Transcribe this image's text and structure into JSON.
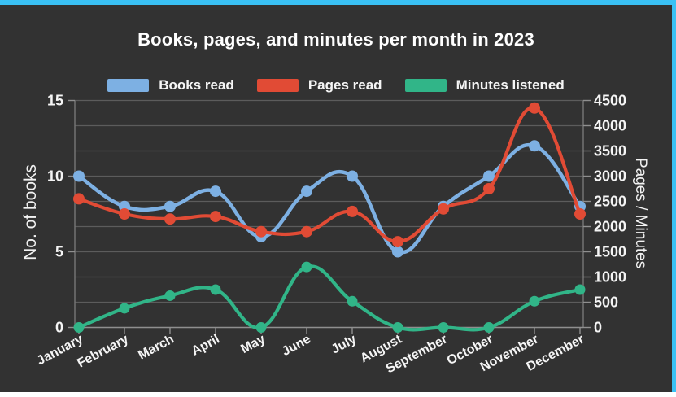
{
  "title": "Books, pages, and minutes per month in 2023",
  "colors": {
    "background": "#323232",
    "frame_border": "#3ac1f4",
    "grid": "#5c5c5c",
    "axis": "#8f8f8f",
    "text": "#f5f5f5"
  },
  "chart_data": {
    "type": "line",
    "smooth": true,
    "grid": "horizontal",
    "legend_position": "top",
    "title": "Books, pages, and minutes per month in 2023",
    "categories": [
      "January",
      "February",
      "March",
      "April",
      "May",
      "June",
      "July",
      "August",
      "September",
      "October",
      "November",
      "December"
    ],
    "left_axis": {
      "label": "No. of books",
      "min": 0,
      "max": 15,
      "ticks": [
        0,
        5,
        10,
        15
      ]
    },
    "right_axis": {
      "label": "Pages / Minutes",
      "min": 0,
      "max": 4500,
      "tick_step": 500
    },
    "series": [
      {
        "name": "Books read",
        "color": "#7db0e3",
        "axis": "left",
        "values": [
          10,
          8,
          8,
          9,
          6,
          9,
          10,
          5,
          8,
          10,
          12,
          8
        ]
      },
      {
        "name": "Pages read",
        "color": "#e14b35",
        "axis": "right",
        "values": [
          2550,
          2250,
          2150,
          2200,
          1900,
          1900,
          2300,
          1700,
          2350,
          2750,
          4350,
          2250
        ]
      },
      {
        "name": "Minutes listened",
        "color": "#31b588",
        "axis": "right",
        "values": [
          0,
          380,
          630,
          750,
          0,
          1200,
          520,
          0,
          0,
          0,
          520,
          750
        ]
      }
    ]
  }
}
